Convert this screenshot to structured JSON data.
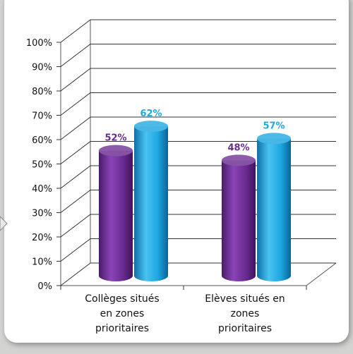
{
  "chart_data": {
    "type": "bar",
    "categories": [
      "Collèges situés en zones prioritaires",
      "Elèves situés en zones prioritaires"
    ],
    "category_lines": [
      [
        "Collèges situés",
        "en zones",
        "prioritaires"
      ],
      [
        "Elèves situés en",
        "zones",
        "prioritaires"
      ]
    ],
    "series": [
      {
        "values": [
          52,
          48
        ],
        "labels": [
          "52%",
          "48%"
        ],
        "color": "#6b2c91"
      },
      {
        "values": [
          62,
          57
        ],
        "labels": [
          "62%",
          "57%"
        ],
        "color": "#1ea7e1"
      }
    ],
    "y_ticks": [
      "0%",
      "10%",
      "20%",
      "30%",
      "40%",
      "50%",
      "60%",
      "70%",
      "80%",
      "90%",
      "100%"
    ],
    "ylim": [
      0,
      100
    ],
    "grid": true,
    "legend": "none",
    "title": "",
    "xlabel": "",
    "ylabel": ""
  }
}
